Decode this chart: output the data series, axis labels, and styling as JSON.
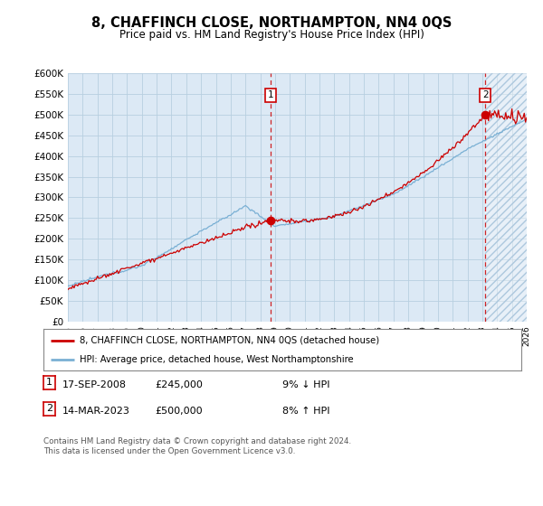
{
  "title": "8, CHAFFINCH CLOSE, NORTHAMPTON, NN4 0QS",
  "subtitle": "Price paid vs. HM Land Registry's House Price Index (HPI)",
  "background_color": "#dce9f5",
  "grid_color": "#b8cfe0",
  "red_line_color": "#cc0000",
  "blue_line_color": "#7ab0d4",
  "sale1_year": 2008.72,
  "sale1_price": 245000,
  "sale2_year": 2023.21,
  "sale2_price": 500000,
  "ylim": [
    0,
    600000
  ],
  "yticks": [
    0,
    50000,
    100000,
    150000,
    200000,
    250000,
    300000,
    350000,
    400000,
    450000,
    500000,
    550000,
    600000
  ],
  "xmin": 1995,
  "xmax": 2026,
  "legend_label_red": "8, CHAFFINCH CLOSE, NORTHAMPTON, NN4 0QS (detached house)",
  "legend_label_blue": "HPI: Average price, detached house, West Northamptonshire",
  "note1_date": "17-SEP-2008",
  "note1_price": "£245,000",
  "note1_change": "9% ↓ HPI",
  "note2_date": "14-MAR-2023",
  "note2_price": "£500,000",
  "note2_change": "8% ↑ HPI",
  "footer": "Contains HM Land Registry data © Crown copyright and database right 2024.\nThis data is licensed under the Open Government Licence v3.0."
}
